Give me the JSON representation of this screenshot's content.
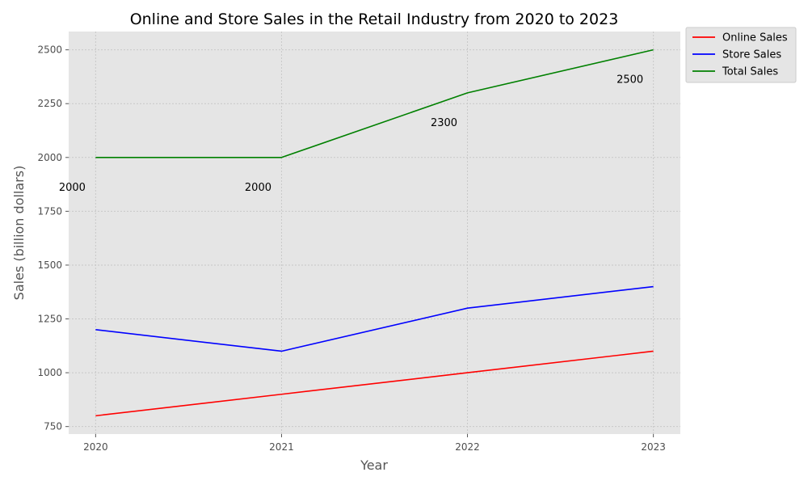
{
  "chart_data": {
    "type": "line",
    "title": "Online and Store Sales in the Retail Industry from 2020 to 2023",
    "xlabel": "Year",
    "ylabel": "Sales (billion dollars)",
    "categories": [
      "2020",
      "2021",
      "2022",
      "2023"
    ],
    "x": [
      2020,
      2021,
      2022,
      2023
    ],
    "xlim": [
      2019.855,
      2023.145
    ],
    "ylim": [
      715,
      2585
    ],
    "yticks": [
      750,
      1000,
      1250,
      1500,
      1750,
      2000,
      2250,
      2500
    ],
    "series": [
      {
        "name": "Online Sales",
        "color": "#ff0000",
        "values": [
          800,
          900,
          1000,
          1100
        ]
      },
      {
        "name": "Store Sales",
        "color": "#0000ff",
        "values": [
          1200,
          1100,
          1300,
          1400
        ]
      },
      {
        "name": "Total Sales",
        "color": "#008000",
        "values": [
          2000,
          2000,
          2300,
          2500
        ]
      }
    ],
    "annotations": [
      {
        "text": "2000",
        "series": "Total Sales",
        "x": 2020
      },
      {
        "text": "2000",
        "series": "Total Sales",
        "x": 2021
      },
      {
        "text": "2300",
        "series": "Total Sales",
        "x": 2022
      },
      {
        "text": "2500",
        "series": "Total Sales",
        "x": 2023
      }
    ],
    "grid": true,
    "legend_position": "outside top-right",
    "style": {
      "background": "#e5e5e5",
      "grid_color": "#c8c8c8"
    }
  }
}
